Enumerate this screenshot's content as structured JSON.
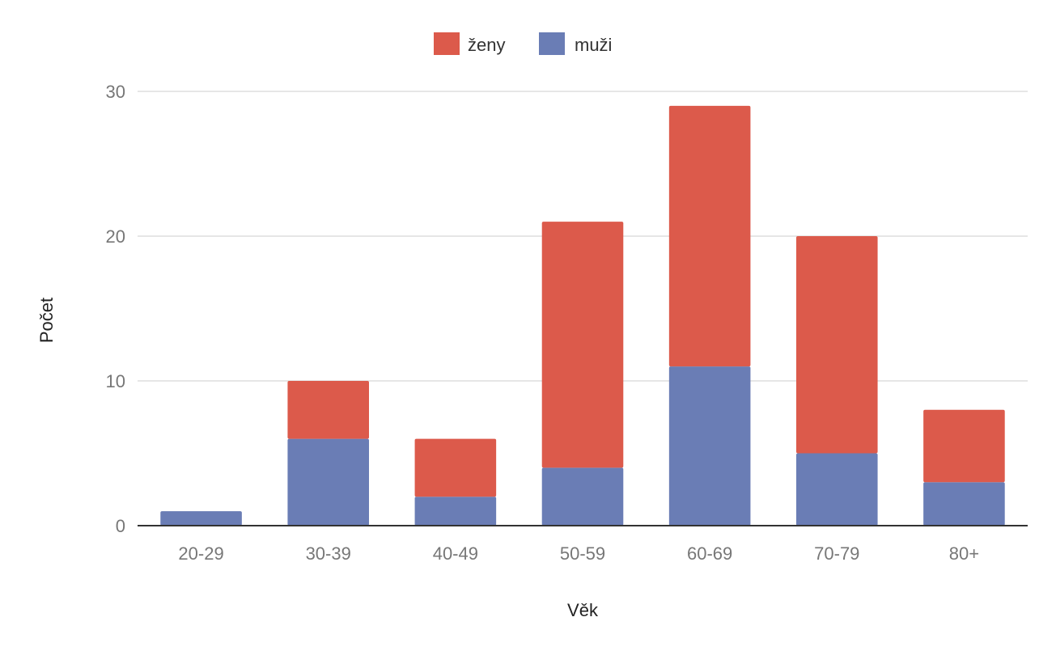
{
  "chart_data": {
    "type": "bar",
    "stacked": true,
    "title": "",
    "xlabel": "Věk",
    "ylabel": "Počet",
    "categories": [
      "20-29",
      "30-39",
      "40-49",
      "50-59",
      "60-69",
      "70-79",
      "80+"
    ],
    "series": [
      {
        "name": "muži",
        "color": "#6a7db5",
        "values": [
          1,
          6,
          2,
          4,
          11,
          5,
          3
        ]
      },
      {
        "name": "ženy",
        "color": "#dc5a4b",
        "values": [
          0,
          4,
          4,
          17,
          18,
          15,
          5
        ]
      }
    ],
    "legend_order": [
      "ženy",
      "muži"
    ],
    "yticks": [
      "0",
      "10",
      "20",
      "30"
    ],
    "ylim": [
      0,
      30
    ],
    "grid": true,
    "legend_position": "top-center"
  }
}
